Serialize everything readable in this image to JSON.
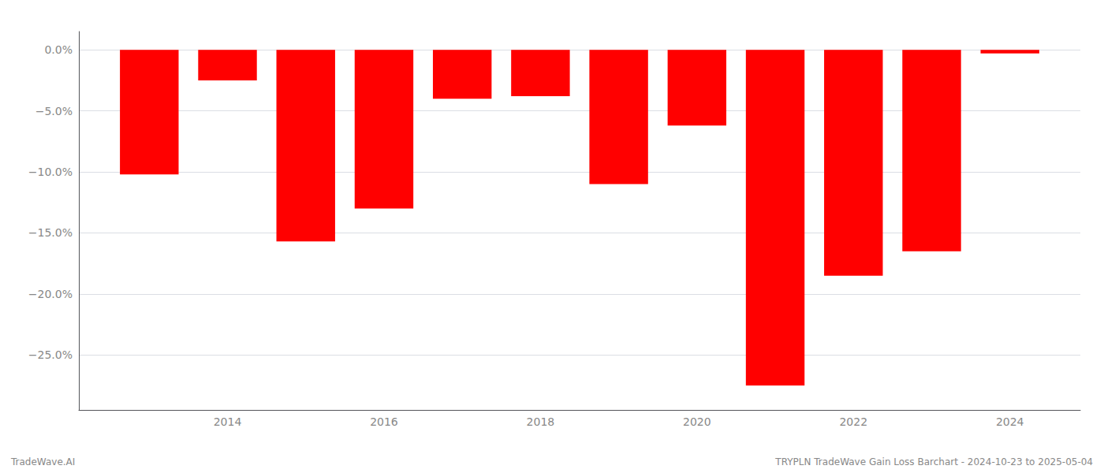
{
  "chart_data": {
    "type": "bar",
    "x": [
      2013,
      2014,
      2015,
      2016,
      2017,
      2018,
      2019,
      2020,
      2021,
      2022,
      2023,
      2024
    ],
    "values": [
      -10.2,
      -2.5,
      -15.7,
      -13.0,
      -4.0,
      -3.8,
      -11.0,
      -6.2,
      -27.5,
      -18.5,
      -16.5,
      -0.3
    ],
    "color": "#ff0000",
    "xlim": [
      2012.1,
      2024.9
    ],
    "xticks": [
      2014,
      2016,
      2018,
      2020,
      2022,
      2024
    ],
    "ylim": [
      -29.5,
      1.5
    ],
    "yticks": [
      {
        "value": 0.0,
        "label": "0.0%"
      },
      {
        "value": -5.0,
        "label": "−5.0%"
      },
      {
        "value": -10.0,
        "label": "−10.0%"
      },
      {
        "value": -15.0,
        "label": "−15.0%"
      },
      {
        "value": -20.0,
        "label": "−20.0%"
      },
      {
        "value": -25.0,
        "label": "−25.0%"
      }
    ],
    "grid": true,
    "annotations": [
      "TradeWave.AI",
      "TRYPLN TradeWave Gain Loss Barchart - 2024-10-23 to 2025-05-04"
    ]
  }
}
